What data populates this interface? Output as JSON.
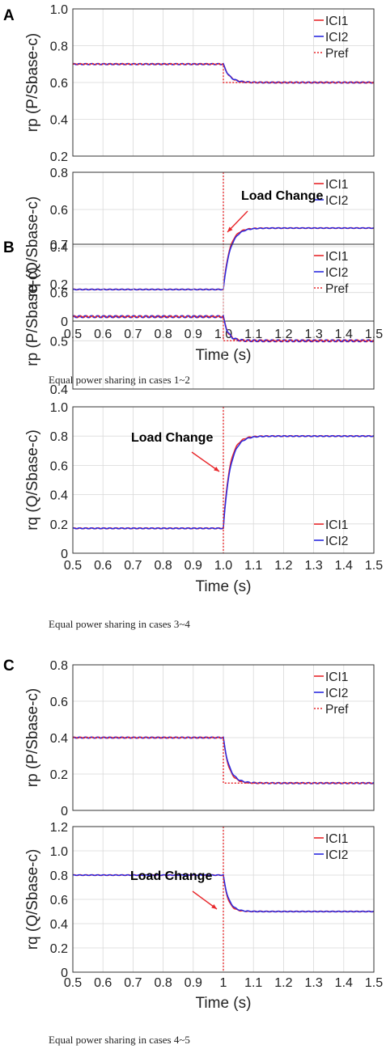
{
  "colors": {
    "ici1": "#e8262a",
    "ici2": "#2a2ae0",
    "pref": "#e8262a",
    "load_change": "#e8262a",
    "grid": "#d9d9d9",
    "axis": "#333333"
  },
  "chart_data": [
    {
      "panel_letter": "A",
      "caption": "Equal power sharing in cases 1~2",
      "xlabel": "Time (s)",
      "xlim": [
        0.5,
        1.5
      ],
      "xticks": [
        "0.5",
        "0.6",
        "0.7",
        "0.8",
        "0.9",
        "1.0",
        "1.1",
        "1.2",
        "1.3",
        "1.4",
        "1.5"
      ],
      "load_change_x": 1.0,
      "annotation": {
        "text": "Load Change"
      },
      "subplots": [
        {
          "type": "line",
          "ylabel": "rp (P/Sbase-c)",
          "ylim": [
            0.2,
            1.0
          ],
          "yticks": [
            "0.2",
            "0.4",
            "0.6",
            "0.8",
            "1.0"
          ],
          "legend": [
            "ICI1",
            "ICI2",
            "Pref"
          ],
          "legend_position": "top-right",
          "series": [
            {
              "name": "ICI1",
              "style": "solid-red",
              "before": 0.7,
              "after": 0.6,
              "tau": 0.02,
              "ripple": 0.003
            },
            {
              "name": "ICI2",
              "style": "solid-blue",
              "before": 0.7,
              "after": 0.6,
              "tau": 0.02,
              "ripple": 0.003
            },
            {
              "name": "Pref",
              "style": "dotted-red",
              "before": 0.7,
              "after": 0.6,
              "tau": 0,
              "ripple": 0
            }
          ]
        },
        {
          "type": "line",
          "ylabel": "rq (Q/Sbase-c)",
          "ylim": [
            0,
            0.8
          ],
          "yticks": [
            "0",
            "0.2",
            "0.4",
            "0.6",
            "0.8"
          ],
          "legend": [
            "ICI1",
            "ICI2"
          ],
          "legend_position": "top-right",
          "series": [
            {
              "name": "ICI1",
              "style": "solid-red",
              "before": 0.17,
              "after": 0.5,
              "tau": 0.02,
              "ripple": 0.002
            },
            {
              "name": "ICI2",
              "style": "solid-blue",
              "before": 0.17,
              "after": 0.5,
              "tau": 0.022,
              "ripple": 0.002
            }
          ]
        }
      ]
    },
    {
      "panel_letter": "B",
      "caption": "Equal power sharing in cases 3~4",
      "xlabel": "Time (s)",
      "xlim": [
        0.5,
        1.5
      ],
      "xticks": [
        "0.5",
        "0.6",
        "0.7",
        "0.8",
        "0.9",
        "1.0",
        "1.1",
        "1.2",
        "1.3",
        "1.4",
        "1.5"
      ],
      "load_change_x": 1.0,
      "annotation": {
        "text": "Load Change"
      },
      "subplots": [
        {
          "type": "line",
          "ylabel": "rp (P/Sbase-c)",
          "ylim": [
            0.4,
            0.7
          ],
          "yticks": [
            "0.4",
            "0.5",
            "0.6",
            "0.7"
          ],
          "legend": [
            "ICI1",
            "ICI2",
            "Pref"
          ],
          "legend_position": "top-right",
          "series": [
            {
              "name": "ICI1",
              "style": "solid-red",
              "before": 0.55,
              "after": 0.5,
              "tau": 0.015,
              "ripple": 0.002
            },
            {
              "name": "ICI2",
              "style": "solid-blue",
              "before": 0.55,
              "after": 0.5,
              "tau": 0.015,
              "ripple": 0.002
            },
            {
              "name": "Pref",
              "style": "dotted-red",
              "before": 0.55,
              "after": 0.5,
              "tau": 0,
              "ripple": 0
            }
          ]
        },
        {
          "type": "line",
          "ylabel": "rq (Q/Sbase-c)",
          "ylim": [
            0,
            1.0
          ],
          "yticks": [
            "0",
            "0.2",
            "0.4",
            "0.6",
            "0.8",
            "1.0"
          ],
          "legend": [
            "ICI1",
            "ICI2"
          ],
          "legend_position": "bottom-right",
          "series": [
            {
              "name": "ICI1",
              "style": "solid-red",
              "before": 0.17,
              "after": 0.8,
              "tau": 0.02,
              "ripple": 0.003
            },
            {
              "name": "ICI2",
              "style": "solid-blue",
              "before": 0.17,
              "after": 0.8,
              "tau": 0.022,
              "ripple": 0.003
            }
          ]
        }
      ]
    },
    {
      "panel_letter": "C",
      "caption": "Equal power sharing in cases 4~5",
      "xlabel": "Time (s)",
      "xlim": [
        0.5,
        1.5
      ],
      "xticks": [
        "0.5",
        "0.6",
        "0.7",
        "0.8",
        "0.9",
        "1",
        "1.1",
        "1.2",
        "1.3",
        "1.4",
        "1.5"
      ],
      "load_change_x": 1.0,
      "annotation": {
        "text": "Load Change"
      },
      "subplots": [
        {
          "type": "line",
          "ylabel": "rp (P/Sbase-c)",
          "ylim": [
            0,
            0.8
          ],
          "yticks": [
            "0",
            "0.2",
            "0.4",
            "0.6",
            "0.8"
          ],
          "legend": [
            "ICI1",
            "ICI2",
            "Pref"
          ],
          "legend_position": "top-right",
          "series": [
            {
              "name": "ICI1",
              "style": "solid-red",
              "before": 0.4,
              "after": 0.15,
              "tau": 0.018,
              "ripple": 0.003
            },
            {
              "name": "ICI2",
              "style": "solid-blue",
              "before": 0.4,
              "after": 0.15,
              "tau": 0.02,
              "ripple": 0.003
            },
            {
              "name": "Pref",
              "style": "dotted-red",
              "before": 0.4,
              "after": 0.15,
              "tau": 0,
              "ripple": 0
            }
          ]
        },
        {
          "type": "line",
          "ylabel": "rq (Q/Sbase-c)",
          "ylim": [
            0,
            1.2
          ],
          "yticks": [
            "0",
            "0.2",
            "0.4",
            "0.6",
            "0.8",
            "1.0",
            "1.2"
          ],
          "legend": [
            "ICI1",
            "ICI2"
          ],
          "legend_position": "top-right",
          "series": [
            {
              "name": "ICI1",
              "style": "solid-red",
              "before": 0.8,
              "after": 0.5,
              "tau": 0.015,
              "ripple": 0.003
            },
            {
              "name": "ICI2",
              "style": "solid-blue",
              "before": 0.8,
              "after": 0.5,
              "tau": 0.017,
              "ripple": 0.003
            }
          ]
        }
      ]
    }
  ]
}
